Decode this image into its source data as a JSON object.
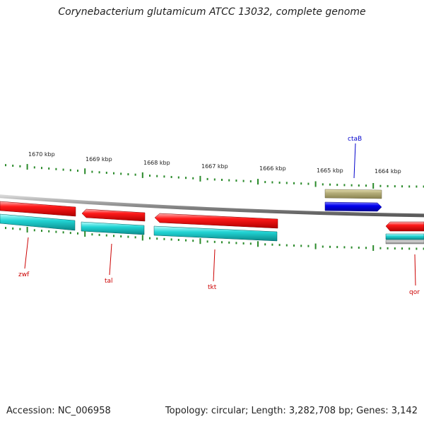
{
  "title": "Corynebacterium glutamicum ATCC 13032, complete genome",
  "footer": {
    "accession": "Accession: NC_006958",
    "summary": "Topology: circular; Length: 3,282,708 bp; Genes: 3,142"
  },
  "scale": {
    "tick_labels": [
      "1670 kbp",
      "1669 kbp",
      "1668 kbp",
      "1667 kbp",
      "1666 kbp",
      "1665 kbp",
      "1664 kbp"
    ]
  },
  "genes": [
    {
      "name": "zwf",
      "strand": "reverse",
      "label_color": "#cc0000",
      "feature_color": "#ee0000",
      "cds_color": "#18c8c8"
    },
    {
      "name": "tal",
      "strand": "reverse",
      "label_color": "#cc0000",
      "feature_color": "#ee0000",
      "cds_color": "#18c8c8"
    },
    {
      "name": "tkt",
      "strand": "reverse",
      "label_color": "#cc0000",
      "feature_color": "#ee0000",
      "cds_color": "#18c8c8"
    },
    {
      "name": "ctaB",
      "strand": "forward",
      "label_color": "#0000cc",
      "feature_color": "#0000ee",
      "cds_color": "#b5ae7a"
    },
    {
      "name": "qor",
      "strand": "reverse",
      "label_color": "#cc0000",
      "feature_color": "#ee0000",
      "cds_color": "#18c8c8"
    }
  ],
  "colors": {
    "backbone": "#8c8c8c",
    "tick": "#2a8a2a",
    "rna_gray": "#bbbbbb"
  }
}
